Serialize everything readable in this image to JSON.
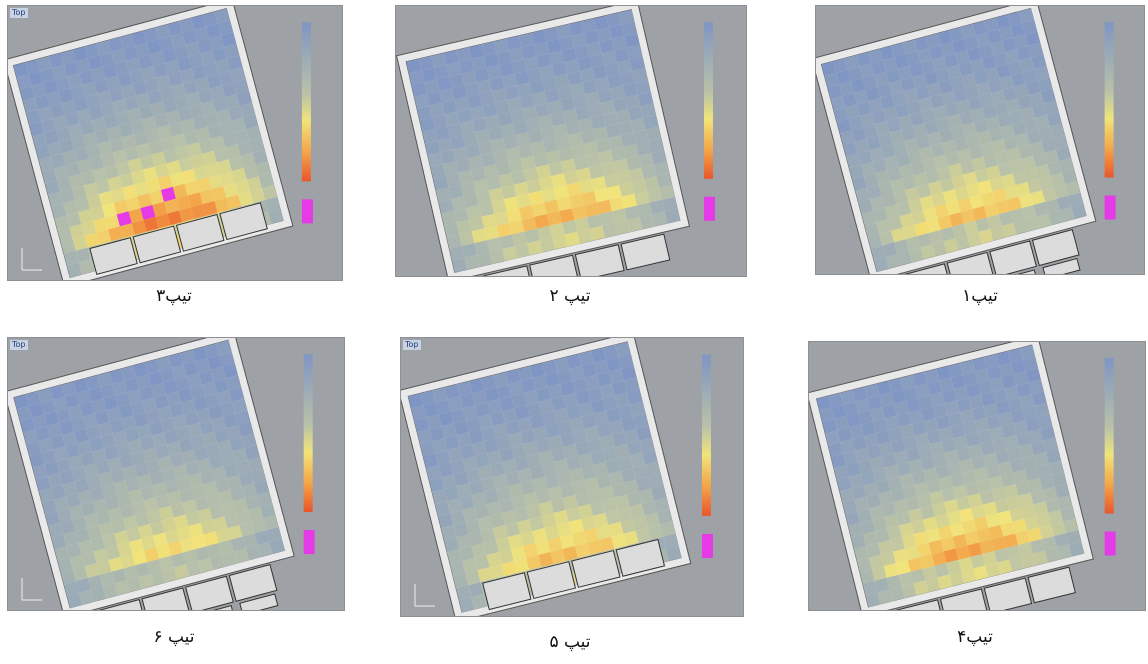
{
  "viewport_label": "Top",
  "panels": [
    {
      "caption": "تیپ۳",
      "has_label": true,
      "has_axis": true
    },
    {
      "caption": "تیپ ۲",
      "has_label": false,
      "has_axis": false
    },
    {
      "caption": "تیپ۱",
      "has_label": false,
      "has_axis": false
    },
    {
      "caption": "تیپ ۶",
      "has_label": true,
      "has_axis": true
    },
    {
      "caption": "تیپ ۵",
      "has_label": true,
      "has_axis": true
    },
    {
      "caption": "تیپ۴",
      "has_label": false,
      "has_axis": false
    }
  ],
  "colors": {
    "viewport_bg": "#9ea2a6",
    "cold": "#7f95c4",
    "mid": "#f1e47a",
    "hot": "#e8552c",
    "over": "#e53be6",
    "wall": "#e9e9e9"
  }
}
